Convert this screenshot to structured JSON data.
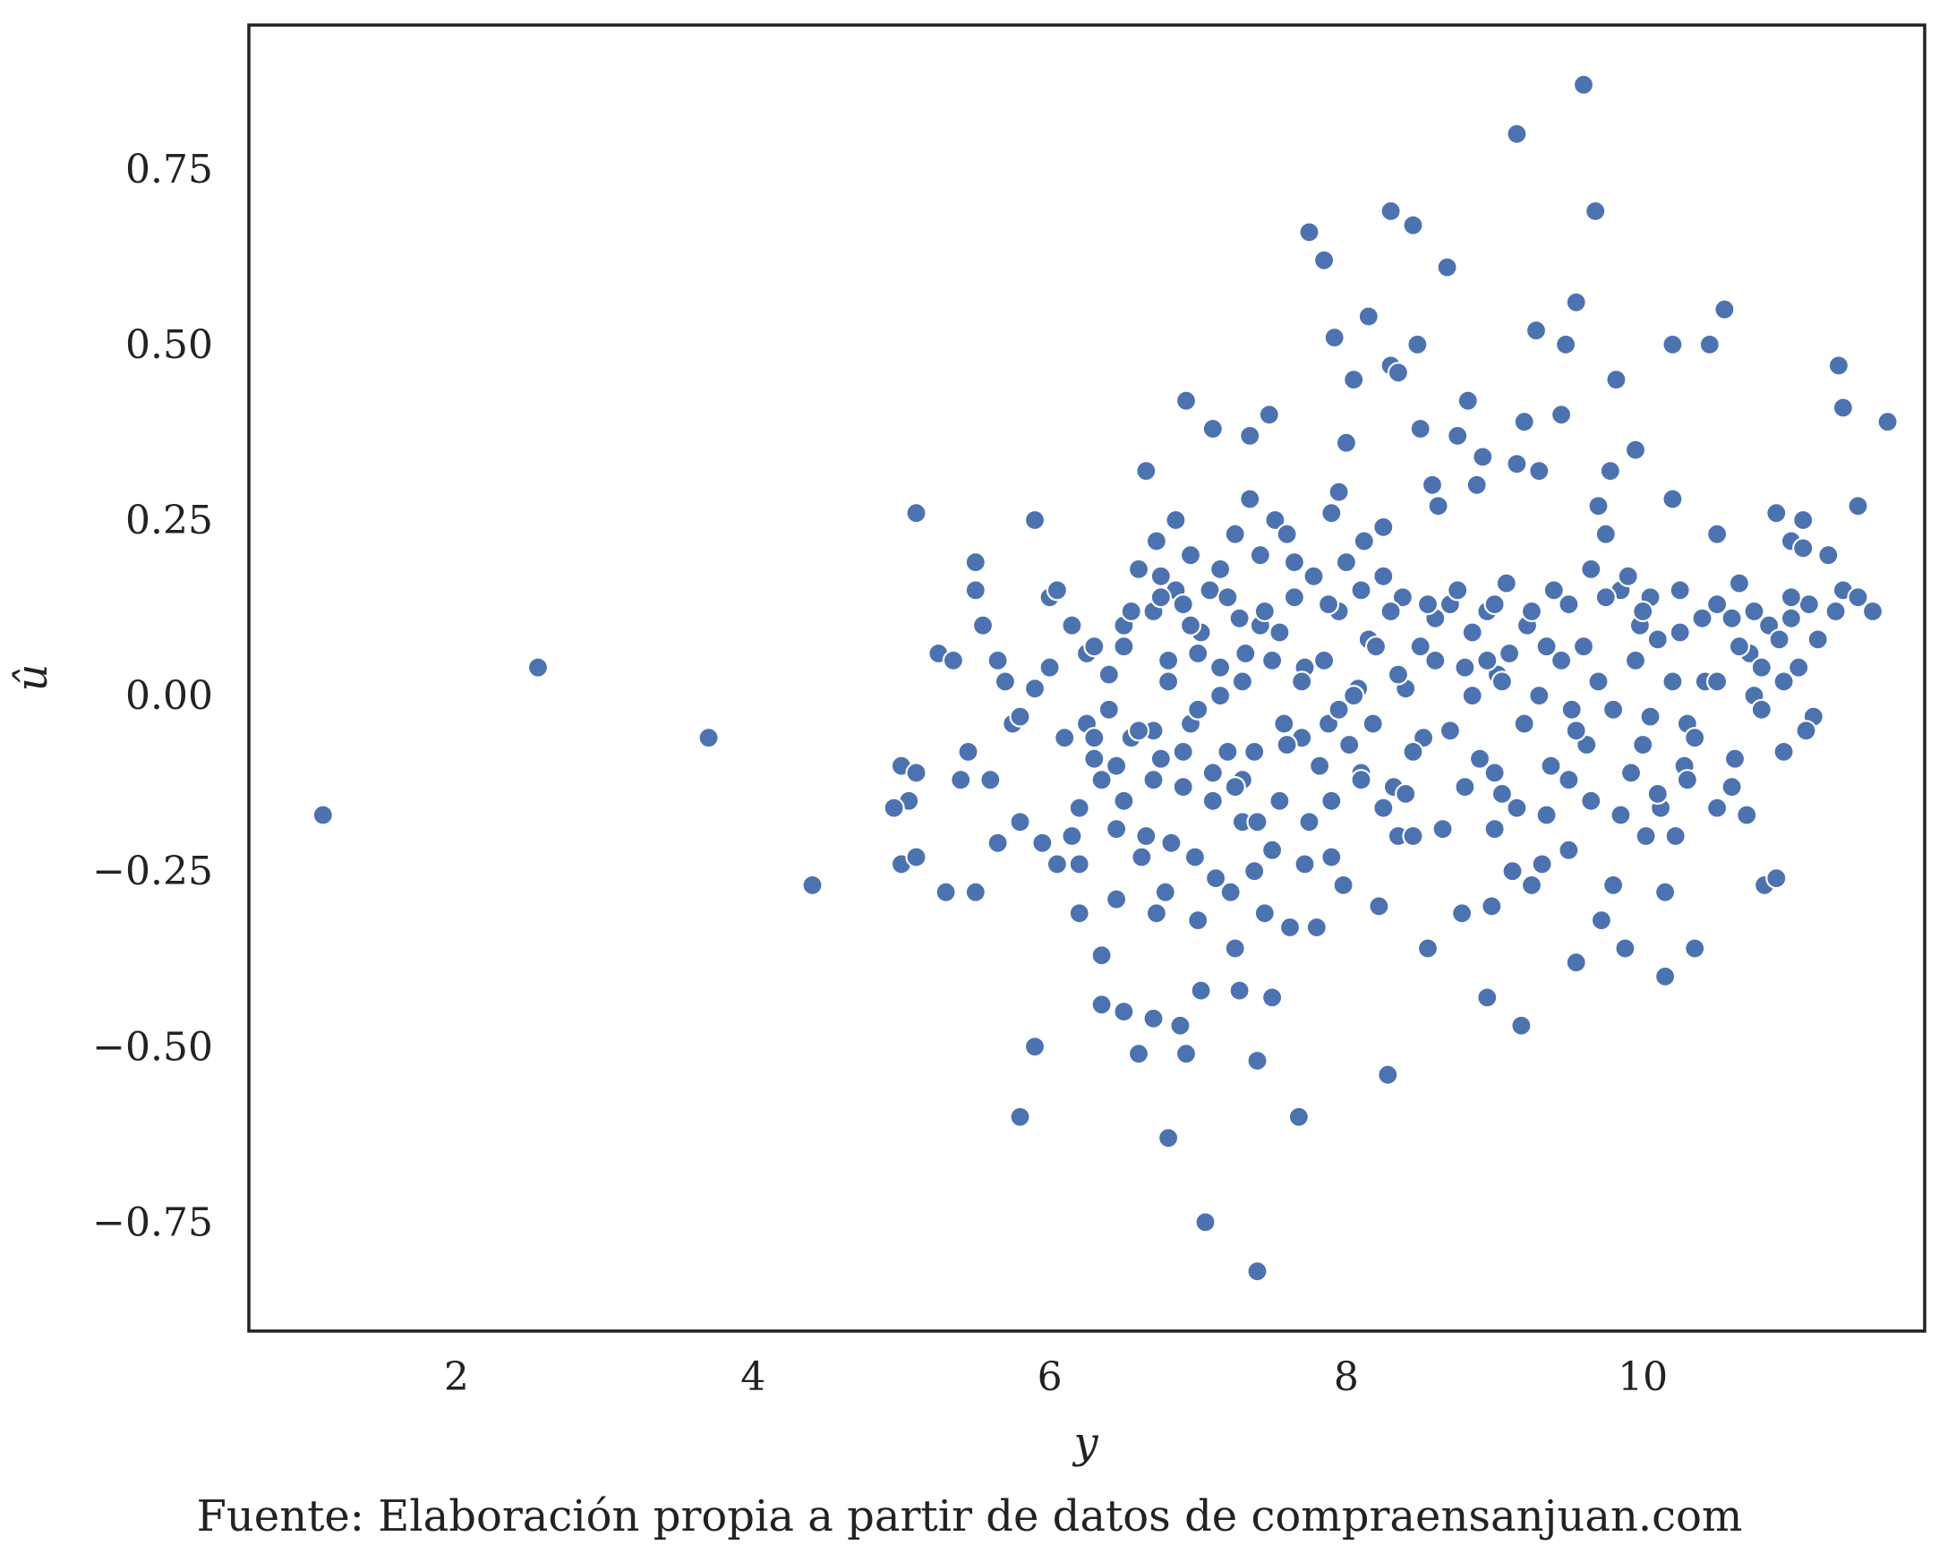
{
  "chart_data": {
    "type": "scatter",
    "xlabel": "y",
    "ylabel": "û",
    "caption": "Fuente: Elaboración propia a partir de datos de compraensanjuan.com",
    "xlim": [
      0.6,
      11.9
    ],
    "ylim": [
      -0.905,
      0.955
    ],
    "xticks": [
      2,
      4,
      6,
      8,
      10
    ],
    "xtick_labels": [
      "2",
      "4",
      "6",
      "8",
      "10"
    ],
    "yticks": [
      -0.75,
      -0.5,
      -0.25,
      0.0,
      0.25,
      0.5,
      0.75
    ],
    "ytick_labels": [
      "−0.75",
      "−0.50",
      "−0.25",
      "0.00",
      "0.25",
      "0.50",
      "0.75"
    ],
    "grid": false,
    "legend": "none",
    "marker_color": "#4c72b0",
    "points": [
      [
        1.1,
        -0.17
      ],
      [
        2.55,
        0.04
      ],
      [
        3.7,
        -0.06
      ],
      [
        4.4,
        -0.27
      ],
      [
        5.0,
        -0.1
      ],
      [
        5.0,
        -0.24
      ],
      [
        5.1,
        0.26
      ],
      [
        5.1,
        -0.23
      ],
      [
        5.05,
        -0.15
      ],
      [
        4.95,
        -0.16
      ],
      [
        5.1,
        -0.11
      ],
      [
        5.25,
        0.06
      ],
      [
        5.35,
        0.05
      ],
      [
        5.4,
        -0.12
      ],
      [
        5.45,
        -0.08
      ],
      [
        5.5,
        0.15
      ],
      [
        5.5,
        0.19
      ],
      [
        5.55,
        0.1
      ],
      [
        5.3,
        -0.28
      ],
      [
        5.5,
        -0.28
      ],
      [
        5.6,
        -0.12
      ],
      [
        5.65,
        -0.21
      ],
      [
        5.65,
        0.05
      ],
      [
        5.7,
        0.02
      ],
      [
        5.75,
        -0.04
      ],
      [
        5.8,
        -0.18
      ],
      [
        5.8,
        -0.6
      ],
      [
        5.8,
        -0.03
      ],
      [
        5.9,
        0.25
      ],
      [
        5.9,
        -0.5
      ],
      [
        5.9,
        0.01
      ],
      [
        5.95,
        -0.21
      ],
      [
        6.0,
        0.14
      ],
      [
        6.0,
        0.04
      ],
      [
        6.05,
        -0.24
      ],
      [
        6.05,
        0.15
      ],
      [
        6.1,
        -0.06
      ],
      [
        6.15,
        0.1
      ],
      [
        6.15,
        -0.2
      ],
      [
        6.2,
        -0.31
      ],
      [
        6.2,
        -0.24
      ],
      [
        6.2,
        -0.16
      ],
      [
        6.25,
        0.06
      ],
      [
        6.25,
        -0.04
      ],
      [
        6.3,
        0.07
      ],
      [
        6.3,
        -0.06
      ],
      [
        6.35,
        -0.37
      ],
      [
        6.35,
        -0.44
      ],
      [
        6.35,
        -0.12
      ],
      [
        6.4,
        -0.02
      ],
      [
        6.4,
        0.03
      ],
      [
        6.45,
        -0.1
      ],
      [
        6.45,
        -0.19
      ],
      [
        6.45,
        -0.29
      ],
      [
        6.5,
        0.1
      ],
      [
        6.5,
        -0.45
      ],
      [
        6.5,
        0.07
      ],
      [
        6.55,
        -0.06
      ],
      [
        6.6,
        0.18
      ],
      [
        6.6,
        -0.51
      ],
      [
        6.62,
        -0.23
      ],
      [
        6.65,
        0.32
      ],
      [
        6.65,
        -0.2
      ],
      [
        6.7,
        -0.46
      ],
      [
        6.7,
        0.12
      ],
      [
        6.7,
        -0.05
      ],
      [
        6.72,
        -0.31
      ],
      [
        6.72,
        0.22
      ],
      [
        6.75,
        0.17
      ],
      [
        6.75,
        -0.09
      ],
      [
        6.78,
        -0.28
      ],
      [
        6.8,
        -0.63
      ],
      [
        6.8,
        0.02
      ],
      [
        6.82,
        -0.21
      ],
      [
        6.85,
        0.15
      ],
      [
        6.85,
        0.25
      ],
      [
        6.88,
        -0.47
      ],
      [
        6.9,
        -0.13
      ],
      [
        6.9,
        0.13
      ],
      [
        6.92,
        0.42
      ],
      [
        6.92,
        -0.51
      ],
      [
        6.95,
        0.2
      ],
      [
        6.95,
        -0.04
      ],
      [
        6.98,
        -0.23
      ],
      [
        7.0,
        -0.32
      ],
      [
        7.0,
        0.06
      ],
      [
        7.02,
        -0.42
      ],
      [
        7.02,
        0.09
      ],
      [
        7.05,
        -0.75
      ],
      [
        7.08,
        0.15
      ],
      [
        7.1,
        0.38
      ],
      [
        7.1,
        -0.15
      ],
      [
        7.12,
        -0.26
      ],
      [
        7.15,
        0.04
      ],
      [
        7.15,
        0.18
      ],
      [
        7.2,
        -0.08
      ],
      [
        7.22,
        -0.28
      ],
      [
        7.25,
        0.23
      ],
      [
        7.25,
        -0.36
      ],
      [
        7.28,
        -0.42
      ],
      [
        7.28,
        0.11
      ],
      [
        7.3,
        -0.12
      ],
      [
        7.3,
        -0.18
      ],
      [
        7.32,
        0.06
      ],
      [
        7.35,
        0.37
      ],
      [
        7.35,
        0.28
      ],
      [
        7.38,
        -0.08
      ],
      [
        7.38,
        -0.25
      ],
      [
        7.4,
        -0.82
      ],
      [
        7.4,
        -0.52
      ],
      [
        7.42,
        0.2
      ],
      [
        7.42,
        0.1
      ],
      [
        7.45,
        -0.31
      ],
      [
        7.48,
        0.4
      ],
      [
        7.5,
        -0.22
      ],
      [
        7.5,
        -0.43
      ],
      [
        7.52,
        0.25
      ],
      [
        7.55,
        0.09
      ],
      [
        7.58,
        -0.04
      ],
      [
        7.6,
        0.23
      ],
      [
        7.62,
        -0.33
      ],
      [
        7.65,
        0.19
      ],
      [
        7.68,
        -0.6
      ],
      [
        7.7,
        -0.06
      ],
      [
        7.72,
        0.04
      ],
      [
        7.72,
        -0.24
      ],
      [
        7.75,
        0.66
      ],
      [
        7.78,
        0.17
      ],
      [
        7.8,
        -0.33
      ],
      [
        7.82,
        -0.1
      ],
      [
        7.85,
        0.62
      ],
      [
        7.88,
        -0.04
      ],
      [
        7.9,
        0.26
      ],
      [
        7.9,
        -0.23
      ],
      [
        7.92,
        0.51
      ],
      [
        7.95,
        0.29
      ],
      [
        7.95,
        0.12
      ],
      [
        7.98,
        -0.27
      ],
      [
        8.0,
        0.36
      ],
      [
        8.0,
        0.19
      ],
      [
        8.02,
        -0.07
      ],
      [
        8.05,
        0.45
      ],
      [
        8.08,
        0.01
      ],
      [
        8.1,
        -0.11
      ],
      [
        8.12,
        0.22
      ],
      [
        8.15,
        0.54
      ],
      [
        8.15,
        0.08
      ],
      [
        8.2,
        0.07
      ],
      [
        8.22,
        -0.3
      ],
      [
        8.25,
        0.24
      ],
      [
        8.25,
        0.17
      ],
      [
        8.28,
        -0.54
      ],
      [
        8.3,
        0.69
      ],
      [
        8.3,
        0.47
      ],
      [
        8.32,
        -0.13
      ],
      [
        8.35,
        0.46
      ],
      [
        8.35,
        -0.2
      ],
      [
        8.38,
        0.14
      ],
      [
        8.4,
        0.01
      ],
      [
        8.45,
        0.67
      ],
      [
        8.45,
        -0.2
      ],
      [
        8.48,
        0.5
      ],
      [
        8.5,
        0.38
      ],
      [
        8.5,
        0.07
      ],
      [
        8.52,
        -0.06
      ],
      [
        8.55,
        -0.36
      ],
      [
        8.58,
        0.3
      ],
      [
        8.6,
        0.11
      ],
      [
        8.62,
        0.27
      ],
      [
        8.68,
        0.61
      ],
      [
        8.7,
        0.13
      ],
      [
        8.75,
        0.37
      ],
      [
        8.78,
        -0.31
      ],
      [
        8.8,
        0.04
      ],
      [
        8.82,
        0.42
      ],
      [
        8.85,
        0.09
      ],
      [
        8.88,
        0.3
      ],
      [
        8.9,
        -0.09
      ],
      [
        8.92,
        0.34
      ],
      [
        8.95,
        -0.43
      ],
      [
        8.95,
        0.12
      ],
      [
        8.98,
        -0.3
      ],
      [
        9.0,
        -0.11
      ],
      [
        9.02,
        0.03
      ],
      [
        9.05,
        -0.14
      ],
      [
        9.08,
        0.16
      ],
      [
        9.1,
        0.06
      ],
      [
        9.12,
        -0.25
      ],
      [
        9.15,
        0.8
      ],
      [
        9.15,
        0.33
      ],
      [
        9.18,
        -0.47
      ],
      [
        9.2,
        0.39
      ],
      [
        9.22,
        0.1
      ],
      [
        9.25,
        -0.27
      ],
      [
        9.28,
        0.52
      ],
      [
        9.3,
        0.32
      ],
      [
        9.32,
        -0.24
      ],
      [
        9.35,
        0.07
      ],
      [
        9.38,
        -0.1
      ],
      [
        9.4,
        0.15
      ],
      [
        9.45,
        0.4
      ],
      [
        9.48,
        0.5
      ],
      [
        9.5,
        -0.22
      ],
      [
        9.52,
        -0.02
      ],
      [
        9.55,
        0.56
      ],
      [
        9.55,
        -0.38
      ],
      [
        9.6,
        0.87
      ],
      [
        9.6,
        0.07
      ],
      [
        9.62,
        -0.07
      ],
      [
        9.65,
        0.18
      ],
      [
        9.68,
        0.69
      ],
      [
        9.7,
        0.27
      ],
      [
        9.72,
        -0.32
      ],
      [
        9.75,
        0.23
      ],
      [
        9.78,
        0.32
      ],
      [
        9.8,
        -0.27
      ],
      [
        9.82,
        0.45
      ],
      [
        9.85,
        0.15
      ],
      [
        9.88,
        -0.36
      ],
      [
        9.9,
        0.17
      ],
      [
        9.92,
        -0.11
      ],
      [
        9.95,
        0.35
      ],
      [
        9.98,
        0.1
      ],
      [
        10.0,
        -0.07
      ],
      [
        10.02,
        -0.2
      ],
      [
        10.05,
        0.14
      ],
      [
        10.1,
        0.08
      ],
      [
        10.12,
        -0.16
      ],
      [
        10.15,
        -0.4
      ],
      [
        10.15,
        -0.28
      ],
      [
        10.2,
        0.5
      ],
      [
        10.2,
        0.28
      ],
      [
        10.22,
        -0.2
      ],
      [
        10.25,
        0.09
      ],
      [
        10.28,
        -0.1
      ],
      [
        10.3,
        -0.04
      ],
      [
        10.35,
        -0.36
      ],
      [
        10.4,
        0.11
      ],
      [
        10.42,
        0.02
      ],
      [
        10.45,
        0.5
      ],
      [
        10.5,
        0.23
      ],
      [
        10.5,
        -0.16
      ],
      [
        10.55,
        0.55
      ],
      [
        10.6,
        0.11
      ],
      [
        10.62,
        -0.09
      ],
      [
        10.65,
        0.16
      ],
      [
        10.7,
        -0.17
      ],
      [
        10.72,
        0.06
      ],
      [
        10.75,
        0.0
      ],
      [
        10.8,
        0.04
      ],
      [
        10.82,
        -0.27
      ],
      [
        10.85,
        0.1
      ],
      [
        10.9,
        0.26
      ],
      [
        10.9,
        -0.26
      ],
      [
        10.92,
        0.08
      ],
      [
        10.95,
        -0.08
      ],
      [
        11.0,
        0.22
      ],
      [
        11.0,
        0.11
      ],
      [
        11.05,
        0.04
      ],
      [
        11.08,
        0.21
      ],
      [
        11.08,
        0.25
      ],
      [
        11.12,
        0.13
      ],
      [
        11.15,
        -0.03
      ],
      [
        11.18,
        0.08
      ],
      [
        11.25,
        0.2
      ],
      [
        11.3,
        0.12
      ],
      [
        11.32,
        0.47
      ],
      [
        11.35,
        0.41
      ],
      [
        11.35,
        0.15
      ],
      [
        11.45,
        0.27
      ],
      [
        11.45,
        0.14
      ],
      [
        11.55,
        0.12
      ],
      [
        11.65,
        0.39
      ],
      [
        6.3,
        -0.09
      ],
      [
        6.6,
        -0.05
      ],
      [
        6.8,
        0.05
      ],
      [
        7.0,
        -0.02
      ],
      [
        7.15,
        0.0
      ],
      [
        7.3,
        0.02
      ],
      [
        7.5,
        0.05
      ],
      [
        7.6,
        -0.07
      ],
      [
        7.7,
        0.02
      ],
      [
        7.85,
        0.05
      ],
      [
        7.95,
        -0.02
      ],
      [
        8.05,
        0.0
      ],
      [
        8.18,
        -0.04
      ],
      [
        8.35,
        0.03
      ],
      [
        8.45,
        -0.08
      ],
      [
        8.6,
        0.05
      ],
      [
        8.7,
        -0.05
      ],
      [
        8.85,
        0.0
      ],
      [
        8.95,
        0.05
      ],
      [
        9.05,
        0.02
      ],
      [
        9.2,
        -0.04
      ],
      [
        9.3,
        0.0
      ],
      [
        9.45,
        0.05
      ],
      [
        9.55,
        -0.05
      ],
      [
        9.7,
        0.02
      ],
      [
        9.8,
        -0.02
      ],
      [
        9.95,
        0.05
      ],
      [
        10.05,
        -0.03
      ],
      [
        10.2,
        0.02
      ],
      [
        10.35,
        -0.06
      ],
      [
        10.5,
        0.02
      ],
      [
        10.65,
        0.07
      ],
      [
        10.8,
        -0.02
      ],
      [
        10.95,
        0.02
      ],
      [
        11.1,
        -0.05
      ],
      [
        6.5,
        -0.15
      ],
      [
        6.7,
        -0.12
      ],
      [
        6.9,
        -0.08
      ],
      [
        7.1,
        -0.11
      ],
      [
        7.25,
        -0.13
      ],
      [
        7.4,
        -0.18
      ],
      [
        7.55,
        -0.15
      ],
      [
        7.75,
        -0.18
      ],
      [
        7.9,
        -0.15
      ],
      [
        8.1,
        -0.12
      ],
      [
        8.25,
        -0.16
      ],
      [
        8.4,
        -0.14
      ],
      [
        8.65,
        -0.19
      ],
      [
        8.8,
        -0.13
      ],
      [
        9.0,
        -0.19
      ],
      [
        9.15,
        -0.16
      ],
      [
        9.35,
        -0.17
      ],
      [
        9.5,
        -0.12
      ],
      [
        9.65,
        -0.15
      ],
      [
        9.85,
        -0.17
      ],
      [
        10.1,
        -0.14
      ],
      [
        10.3,
        -0.12
      ],
      [
        10.6,
        -0.13
      ],
      [
        6.55,
        0.12
      ],
      [
        6.75,
        0.14
      ],
      [
        6.95,
        0.1
      ],
      [
        7.2,
        0.14
      ],
      [
        7.45,
        0.12
      ],
      [
        7.65,
        0.14
      ],
      [
        7.88,
        0.13
      ],
      [
        8.1,
        0.15
      ],
      [
        8.3,
        0.12
      ],
      [
        8.55,
        0.13
      ],
      [
        8.75,
        0.15
      ],
      [
        9.0,
        0.13
      ],
      [
        9.25,
        0.12
      ],
      [
        9.5,
        0.13
      ],
      [
        9.75,
        0.14
      ],
      [
        10.0,
        0.12
      ],
      [
        10.25,
        0.15
      ],
      [
        10.5,
        0.13
      ],
      [
        10.75,
        0.12
      ],
      [
        11.0,
        0.14
      ]
    ]
  }
}
